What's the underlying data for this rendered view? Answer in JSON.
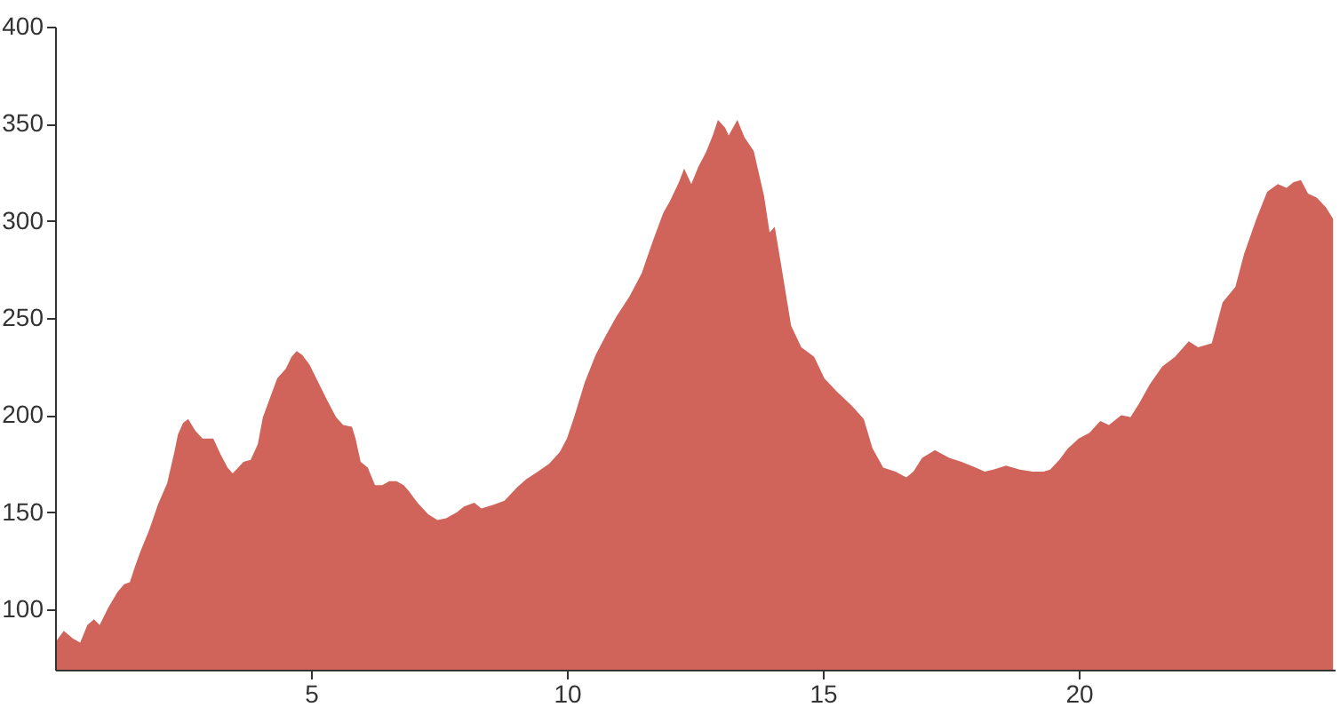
{
  "chart_data": {
    "type": "area",
    "xlim": [
      0,
      25
    ],
    "ylim": [
      69,
      400
    ],
    "xticks": [
      5,
      10,
      15,
      20
    ],
    "yticks": [
      100,
      150,
      200,
      250,
      300,
      350,
      400
    ],
    "grid": false,
    "series": [
      {
        "color": "#d0635a",
        "x": [
          0,
          0.17,
          0.35,
          0.49,
          0.63,
          0.76,
          0.87,
          1.04,
          1.22,
          1.35,
          1.46,
          1.56,
          1.67,
          1.84,
          2.01,
          2.19,
          2.33,
          2.4,
          2.5,
          2.6,
          2.74,
          2.88,
          2.99,
          3.09,
          3.23,
          3.37,
          3.47,
          3.54,
          3.68,
          3.82,
          3.96,
          4.06,
          4.2,
          4.34,
          4.51,
          4.62,
          4.72,
          4.83,
          4.97,
          5.14,
          5.31,
          5.49,
          5.63,
          5.8,
          5.87,
          5.97,
          6.11,
          6.25,
          6.39,
          6.53,
          6.67,
          6.81,
          6.91,
          7.08,
          7.29,
          7.47,
          7.64,
          7.85,
          7.99,
          8.19,
          8.33,
          8.58,
          8.78,
          9.03,
          9.2,
          9.38,
          9.65,
          9.86,
          10.0,
          10.14,
          10.35,
          10.56,
          10.76,
          10.97,
          11.22,
          11.46,
          11.67,
          11.88,
          12.01,
          12.19,
          12.29,
          12.43,
          12.57,
          12.71,
          12.85,
          12.95,
          13.09,
          13.16,
          13.33,
          13.47,
          13.65,
          13.85,
          13.96,
          14.06,
          14.2,
          14.38,
          14.58,
          14.83,
          15.03,
          15.28,
          15.56,
          15.8,
          15.97,
          16.18,
          16.42,
          16.63,
          16.77,
          16.94,
          17.19,
          17.47,
          17.71,
          17.99,
          18.16,
          18.33,
          18.58,
          18.85,
          19.1,
          19.31,
          19.44,
          19.62,
          19.79,
          20.0,
          20.21,
          20.42,
          20.59,
          20.83,
          21.01,
          21.18,
          21.39,
          21.63,
          21.88,
          22.15,
          22.33,
          22.6,
          22.81,
          23.06,
          23.23,
          23.47,
          23.68,
          23.89,
          24.06,
          24.2,
          24.34,
          24.48,
          24.65,
          24.83,
          24.97
        ],
        "values": [
          83,
          89,
          85,
          83,
          92,
          95,
          92,
          101,
          109,
          113,
          114,
          122,
          130,
          141,
          154,
          165,
          181,
          190,
          196,
          198,
          192,
          188,
          188,
          188,
          180,
          173,
          170,
          172,
          176,
          177,
          185,
          199,
          209,
          219,
          224,
          230,
          233,
          231,
          226,
          217,
          208,
          199,
          195,
          194,
          188,
          176,
          173,
          164,
          164,
          166,
          166,
          164,
          161,
          155,
          149,
          146,
          147,
          150,
          153,
          155,
          152,
          154,
          156,
          163,
          167,
          170,
          175,
          181,
          188,
          199,
          217,
          231,
          241,
          251,
          261,
          273,
          289,
          304,
          310,
          320,
          327,
          319,
          328,
          335,
          344,
          352,
          348,
          344,
          352,
          343,
          336,
          313,
          294,
          297,
          275,
          246,
          235,
          230,
          219,
          212,
          205,
          198,
          183,
          173,
          171,
          168,
          171,
          178,
          182,
          178,
          176,
          173,
          171,
          172,
          174,
          172,
          171,
          171,
          172,
          177,
          183,
          188,
          191,
          197,
          195,
          200,
          199,
          206,
          216,
          225,
          230,
          238,
          235,
          237,
          258,
          266,
          283,
          301,
          315,
          319,
          317,
          320,
          321,
          314,
          312,
          307,
          301
        ]
      }
    ]
  }
}
